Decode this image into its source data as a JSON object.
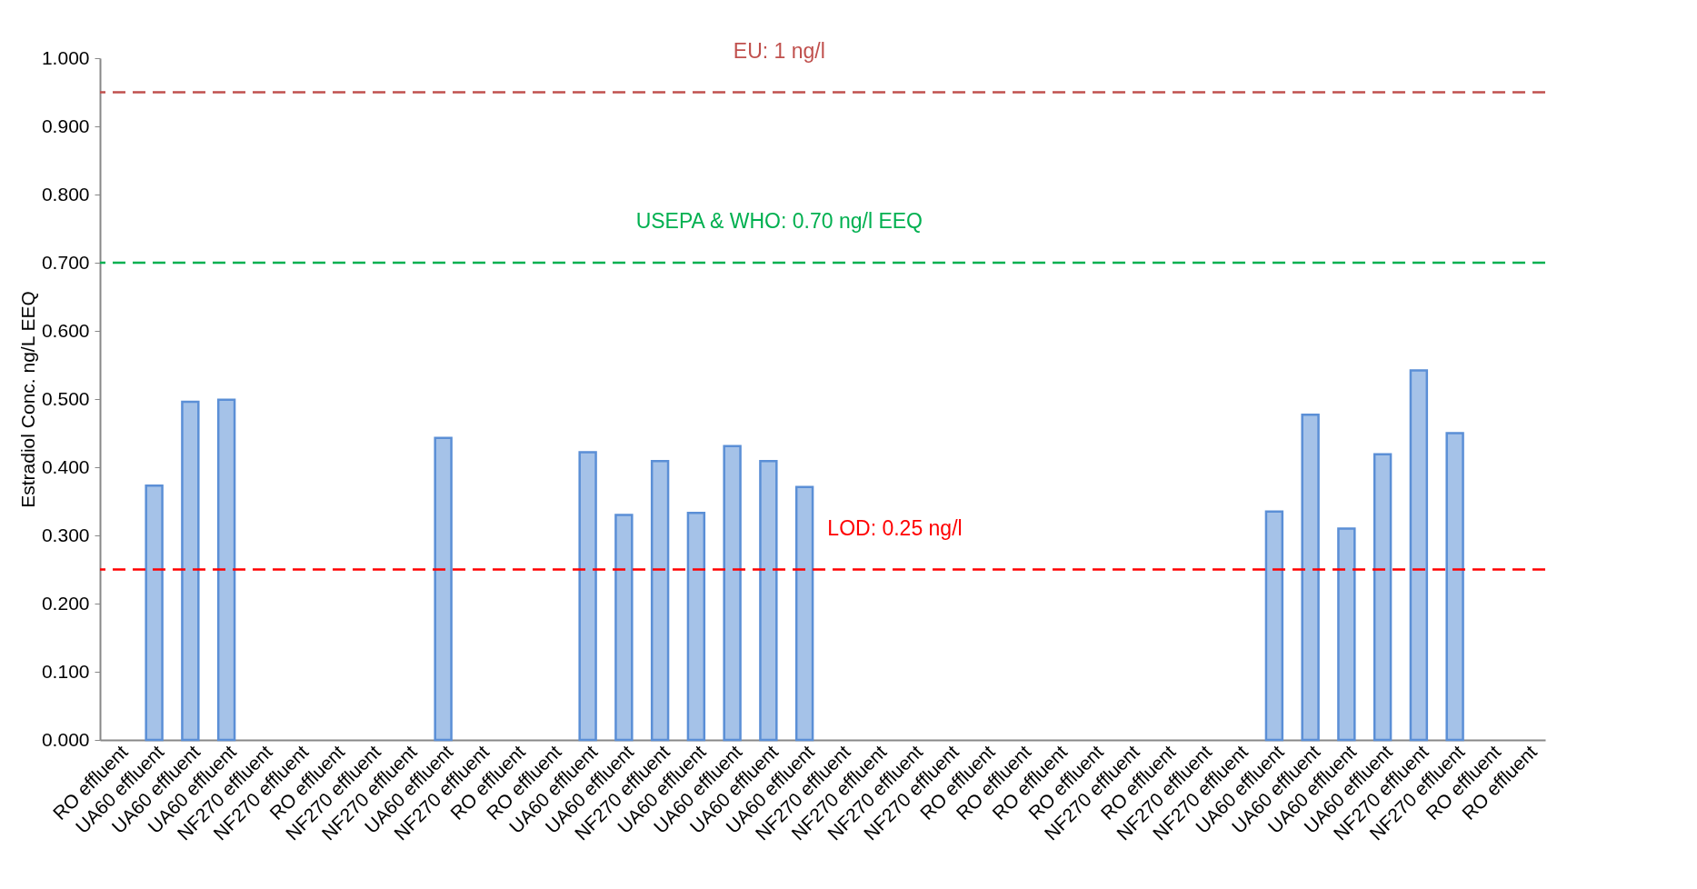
{
  "chart_data": {
    "type": "bar",
    "ylabel": "Estradiol Conc. ng/L EEQ",
    "categories": [
      "RO effluent",
      "UA60 effluent",
      "UA60 effluent",
      "UA60 effluent",
      "NF270 effluent",
      "NF270 effluent",
      "RO effluent",
      "NF270 effluent",
      "NF270 effluent",
      "UA60 effluent",
      "NF270 effluent",
      "RO effluent",
      "RO effluent",
      "UA60 effluent",
      "UA60 effluent",
      "NF270 effluent",
      "UA60 effluent",
      "UA60 effluent",
      "UA60 effluent",
      "UA60 effluent",
      "NF270 effluent",
      "NF270 effluent",
      "NF270 effluent",
      "NF270 effluent",
      "RO effluent",
      "RO effluent",
      "RO effluent",
      "RO effluent",
      "NF270 effluent",
      "RO effluent",
      "NF270 effluent",
      "NF270 effluent",
      "UA60 effluent",
      "UA60 effluent",
      "UA60 effluent",
      "UA60 effluent",
      "NF270 effluent",
      "NF270 effluent",
      "RO effluent",
      "RO effluent"
    ],
    "series": [
      {
        "color": "#5b8fd6",
        "values": [
          null,
          0.373,
          0.496,
          0.499,
          null,
          null,
          null,
          null,
          null,
          0.443,
          null,
          null,
          null,
          0.422,
          0.33,
          0.409,
          0.333,
          0.431,
          0.409,
          0.371,
          null,
          null,
          null,
          null,
          null,
          null,
          null,
          null,
          null,
          null,
          null,
          null,
          0.335,
          0.477,
          0.31,
          0.419,
          0.542,
          0.45,
          null,
          null
        ]
      }
    ],
    "ylim": [
      0,
      1
    ],
    "yticks": [
      {
        "value": 0,
        "label": "0.000"
      },
      {
        "value": 0.1,
        "label": "0.100"
      },
      {
        "value": 0.2,
        "label": "0.200"
      },
      {
        "value": 0.3,
        "label": "0.300"
      },
      {
        "value": 0.4,
        "label": "0.400"
      },
      {
        "value": 0.5,
        "label": "0.500"
      },
      {
        "value": 0.6,
        "label": "0.600"
      },
      {
        "value": 0.7,
        "label": "0.700"
      },
      {
        "value": 0.8,
        "label": "0.800"
      },
      {
        "value": 0.9,
        "label": "0.900"
      },
      {
        "value": 1,
        "label": "1.000"
      }
    ],
    "ref_lines": [
      {
        "axis": "y",
        "value": 0.95,
        "label": "EU: 1 ng/l",
        "color": "#c0504d",
        "line_style": "dashed"
      },
      {
        "axis": "y",
        "value": 0.7,
        "label": "USEPA & WHO: 0.70 ng/l EEQ",
        "color": "#00b050",
        "line_style": "dashed"
      },
      {
        "axis": "y",
        "value": 0.25,
        "label": "LOD: 0.25 ng/l",
        "color": "#ff0000",
        "line_style": "dashed"
      }
    ],
    "grid": false
  }
}
